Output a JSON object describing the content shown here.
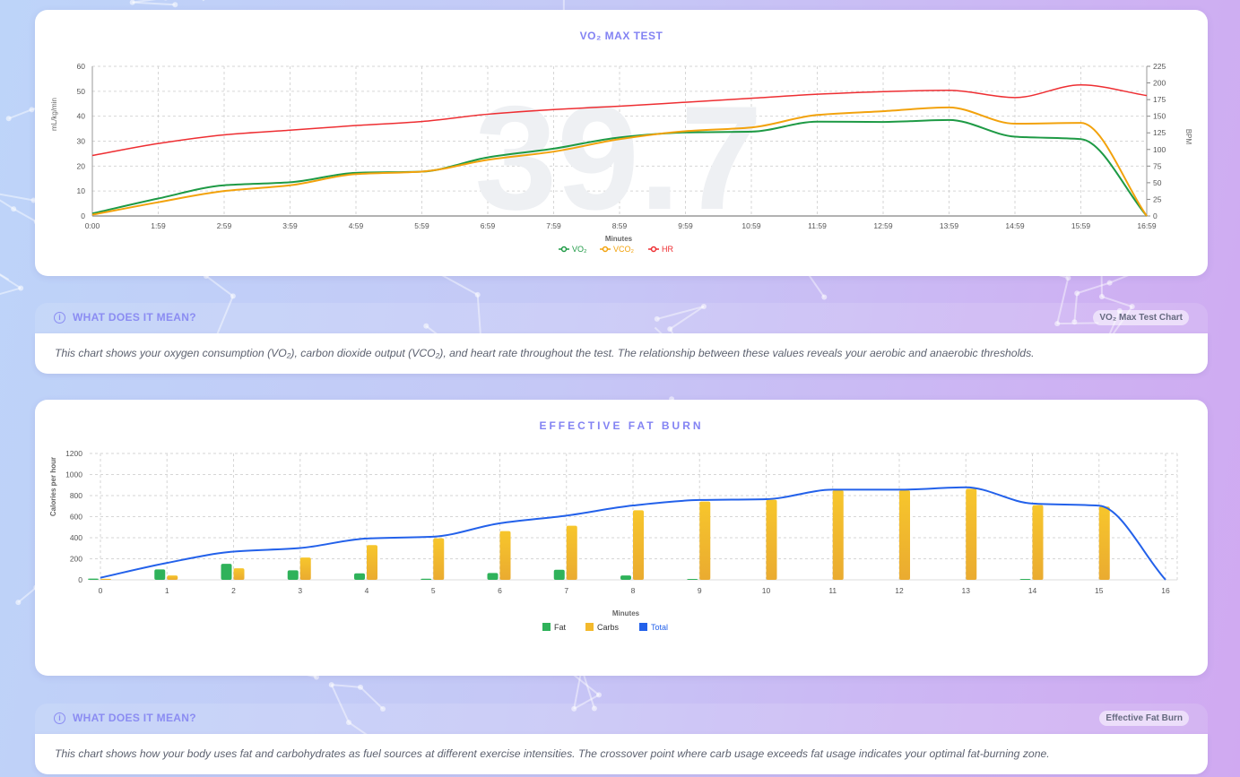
{
  "colors": {
    "vo2": "#1e9a45",
    "vco2": "#f2a20c",
    "hr": "#ee2e32",
    "fat": "#2fb25a",
    "carbs": "#f3b92c",
    "total": "#2361ea",
    "accent": "#8383f3"
  },
  "vo2_card": {
    "title": "VO₂ MAX TEST",
    "watermark": "39.7",
    "legend": [
      {
        "label": "VO₂",
        "icon": "line-circle-icon"
      },
      {
        "label": "VCO₂",
        "icon": "line-circle-icon"
      },
      {
        "label": "HR",
        "icon": "line-circle-icon"
      }
    ]
  },
  "vo2_info": {
    "title": "WHAT DOES IT MEAN?",
    "icon": "info-circle-icon",
    "badge": "VO₂ Max Test Chart",
    "text": "This chart shows your oxygen consumption (VO₂), carbon dioxide output (VCO₂), and heart rate throughout the test. The relationship between these values reveals your aerobic and anaerobic thresholds."
  },
  "fat_card": {
    "title": "EFFECTIVE FAT BURN",
    "legend": [
      {
        "label": "Fat",
        "icon": "square-icon"
      },
      {
        "label": "Carbs",
        "icon": "square-icon"
      },
      {
        "label": "Total",
        "icon": "square-icon"
      }
    ]
  },
  "fat_info": {
    "title": "WHAT DOES IT MEAN?",
    "icon": "info-circle-icon",
    "badge": "Effective Fat Burn",
    "text": "This chart shows how your body uses fat and carbohydrates as fuel sources at different exercise intensities. The crossover point where carb usage exceeds fat usage indicates your optimal fat-burning zone."
  },
  "chart_data": [
    {
      "type": "line",
      "title": "VO₂ MAX TEST",
      "xlabel": "Minutes",
      "ylabel": "mL/kg/min",
      "y2label": "BPM",
      "x": [
        "0:00",
        "1:59",
        "2:59",
        "3:59",
        "4:59",
        "5:59",
        "6:59",
        "7:59",
        "8:59",
        "9:59",
        "10:59",
        "11:59",
        "12:59",
        "13:59",
        "14:59",
        "15:59",
        "16:59"
      ],
      "ylim": [
        0,
        60
      ],
      "yticks": [
        0,
        10,
        20,
        30,
        40,
        50,
        60
      ],
      "y2lim": [
        0,
        225
      ],
      "y2ticks": [
        0,
        25,
        50,
        75,
        100,
        125,
        150,
        175,
        200,
        225
      ],
      "grid": true,
      "legend": "bottom",
      "series": [
        {
          "name": "VO₂",
          "axis": "left",
          "values": [
            1,
            7,
            12.3,
            13.5,
            17.3,
            17.8,
            23.5,
            27,
            31.5,
            33.5,
            33.8,
            37.8,
            37.7,
            38.5,
            31.8,
            30.8,
            0
          ]
        },
        {
          "name": "VCO₂",
          "axis": "left",
          "values": [
            0.5,
            5.5,
            10,
            12.3,
            16.8,
            17.8,
            22.5,
            25.8,
            30.8,
            34,
            35.5,
            40.5,
            42,
            43.5,
            37,
            37.3,
            0
          ]
        },
        {
          "name": "HR",
          "axis": "right",
          "values": [
            91,
            109,
            122,
            129,
            136,
            142,
            153,
            160,
            165,
            171,
            177,
            183,
            187,
            189,
            178,
            197,
            181
          ]
        }
      ]
    },
    {
      "type": "bar",
      "title": "EFFECTIVE FAT BURN",
      "xlabel": "Minutes",
      "ylabel": "Calories per hour",
      "categories": [
        "0",
        "1",
        "2",
        "3",
        "4",
        "5",
        "6",
        "7",
        "8",
        "9",
        "10",
        "11",
        "12",
        "13",
        "14",
        "15",
        "16"
      ],
      "ylim": [
        0,
        1200
      ],
      "yticks": [
        0,
        200,
        400,
        600,
        800,
        1000,
        1200
      ],
      "grid": true,
      "legend": "bottom",
      "series": [
        {
          "name": "Fat",
          "type": "bar",
          "values": [
            12,
            99,
            152,
            90,
            62,
            11,
            65,
            96,
            42,
            8,
            0,
            0,
            0,
            0,
            8,
            0,
            0
          ]
        },
        {
          "name": "Carbs",
          "type": "bar",
          "values": [
            10,
            42,
            110,
            212,
            330,
            395,
            463,
            514,
            661,
            744,
            761,
            851,
            851,
            865,
            710,
            696,
            0
          ]
        },
        {
          "name": "Total",
          "type": "line",
          "values": [
            20,
            161,
            268,
            302,
            393,
            410,
            537,
            610,
            706,
            758,
            766,
            856,
            856,
            879,
            724,
            704,
            0
          ]
        }
      ]
    }
  ]
}
